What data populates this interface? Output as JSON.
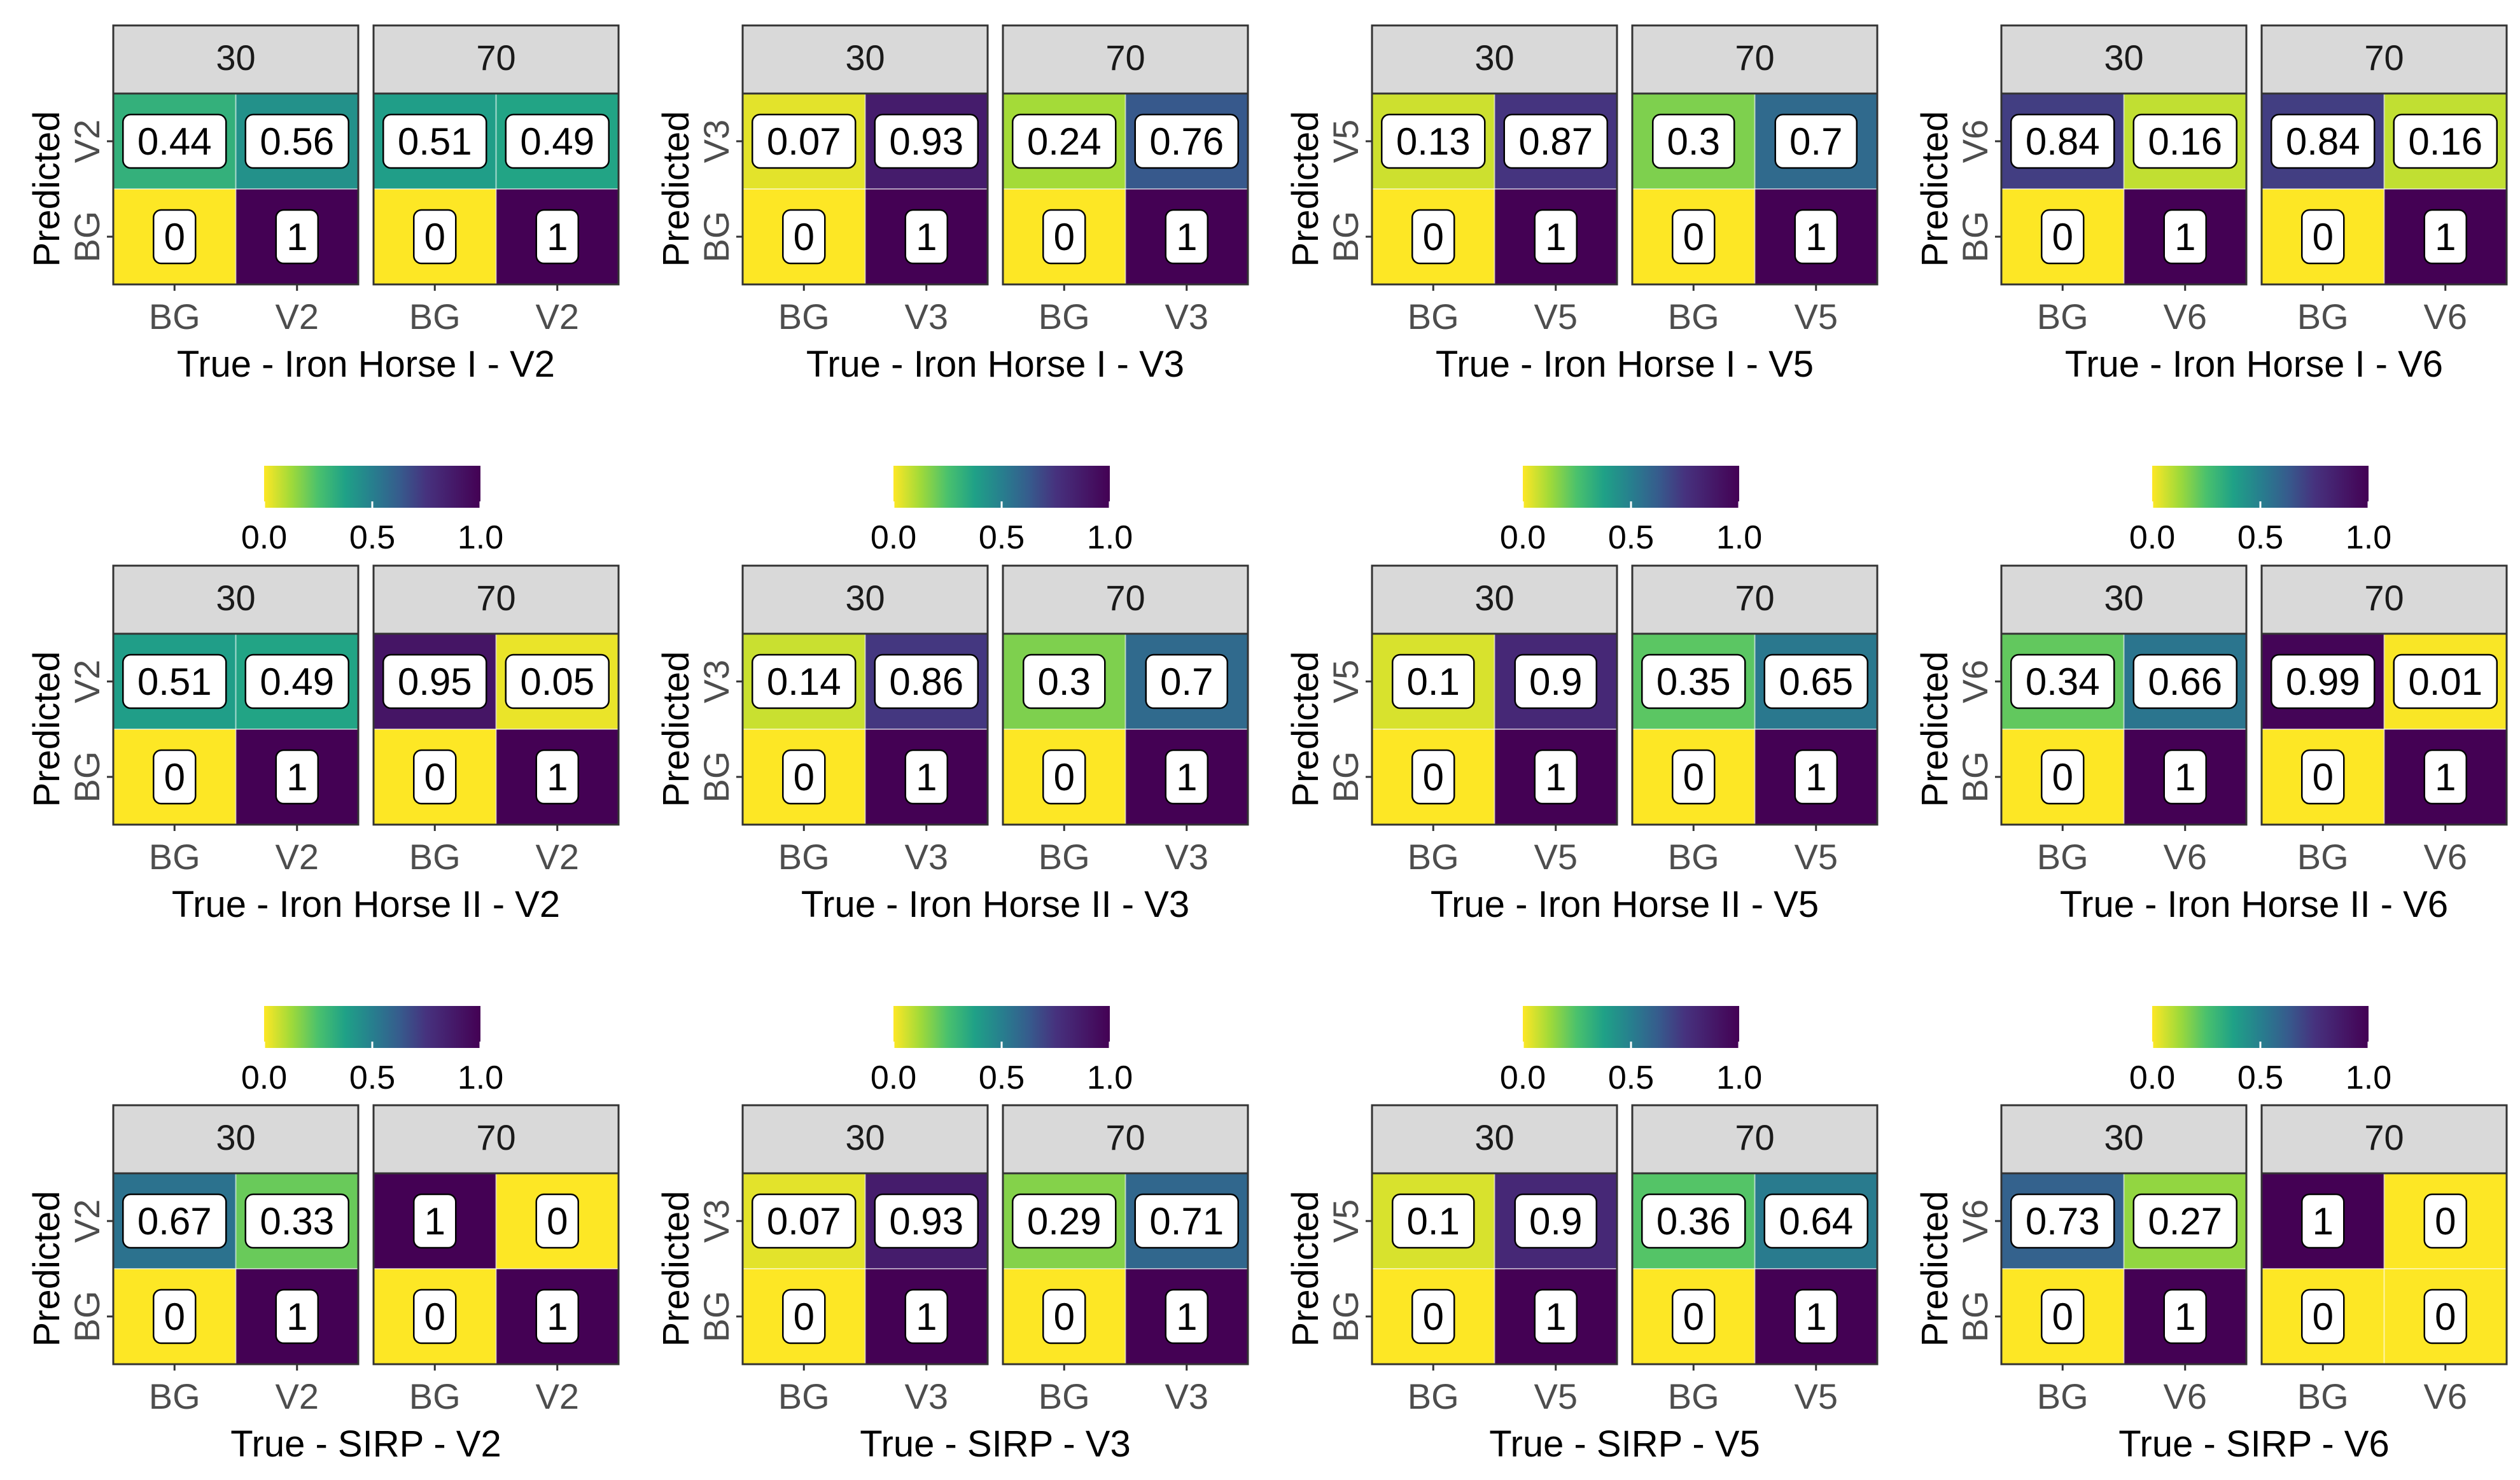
{
  "figure": {
    "colorbar_ticks": [
      "0.0",
      "0.5",
      "1.0"
    ],
    "colormap": "viridis (reversed: 0 = yellow, 1 = dark purple)",
    "colors": {
      "strip_fill": "#d9d9d9",
      "panel_border": "#333333",
      "axis_text": "#4d4d4d",
      "label_text": "#000000"
    }
  },
  "chart_data": [
    {
      "type": "heatmap",
      "xlabel": "True - Iron Horse I - V2",
      "ylabel": "Predicted",
      "categories": [
        "BG",
        "V2"
      ],
      "panels": [
        {
          "strip": "30",
          "rows": [
            {
              "label": "V2",
              "values": [
                "0.44",
                "0.56"
              ]
            },
            {
              "label": "BG",
              "values": [
                "0",
                "1"
              ]
            }
          ]
        },
        {
          "strip": "70",
          "rows": [
            {
              "label": "V2",
              "values": [
                "0.51",
                "0.49"
              ]
            },
            {
              "label": "BG",
              "values": [
                "0",
                "1"
              ]
            }
          ]
        }
      ]
    },
    {
      "type": "heatmap",
      "xlabel": "True - Iron Horse I - V3",
      "ylabel": "Predicted",
      "categories": [
        "BG",
        "V3"
      ],
      "panels": [
        {
          "strip": "30",
          "rows": [
            {
              "label": "V3",
              "values": [
                "0.07",
                "0.93"
              ]
            },
            {
              "label": "BG",
              "values": [
                "0",
                "1"
              ]
            }
          ]
        },
        {
          "strip": "70",
          "rows": [
            {
              "label": "V3",
              "values": [
                "0.24",
                "0.76"
              ]
            },
            {
              "label": "BG",
              "values": [
                "0",
                "1"
              ]
            }
          ]
        }
      ]
    },
    {
      "type": "heatmap",
      "xlabel": "True - Iron Horse I - V5",
      "ylabel": "Predicted",
      "categories": [
        "BG",
        "V5"
      ],
      "panels": [
        {
          "strip": "30",
          "rows": [
            {
              "label": "V5",
              "values": [
                "0.13",
                "0.87"
              ]
            },
            {
              "label": "BG",
              "values": [
                "0",
                "1"
              ]
            }
          ]
        },
        {
          "strip": "70",
          "rows": [
            {
              "label": "V5",
              "values": [
                "0.3",
                "0.7"
              ]
            },
            {
              "label": "BG",
              "values": [
                "0",
                "1"
              ]
            }
          ]
        }
      ]
    },
    {
      "type": "heatmap",
      "xlabel": "True - Iron Horse I - V6",
      "ylabel": "Predicted",
      "categories": [
        "BG",
        "V6"
      ],
      "panels": [
        {
          "strip": "30",
          "rows": [
            {
              "label": "V6",
              "values": [
                "0.84",
                "0.16"
              ]
            },
            {
              "label": "BG",
              "values": [
                "0",
                "1"
              ]
            }
          ]
        },
        {
          "strip": "70",
          "rows": [
            {
              "label": "V6",
              "values": [
                "0.84",
                "0.16"
              ]
            },
            {
              "label": "BG",
              "values": [
                "0",
                "1"
              ]
            }
          ]
        }
      ]
    },
    {
      "type": "heatmap",
      "xlabel": "True - Iron Horse II - V2",
      "ylabel": "Predicted",
      "categories": [
        "BG",
        "V2"
      ],
      "panels": [
        {
          "strip": "30",
          "rows": [
            {
              "label": "V2",
              "values": [
                "0.51",
                "0.49"
              ]
            },
            {
              "label": "BG",
              "values": [
                "0",
                "1"
              ]
            }
          ]
        },
        {
          "strip": "70",
          "rows": [
            {
              "label": "V2",
              "values": [
                "0.95",
                "0.05"
              ]
            },
            {
              "label": "BG",
              "values": [
                "0",
                "1"
              ]
            }
          ]
        }
      ]
    },
    {
      "type": "heatmap",
      "xlabel": "True - Iron Horse II - V3",
      "ylabel": "Predicted",
      "categories": [
        "BG",
        "V3"
      ],
      "panels": [
        {
          "strip": "30",
          "rows": [
            {
              "label": "V3",
              "values": [
                "0.14",
                "0.86"
              ]
            },
            {
              "label": "BG",
              "values": [
                "0",
                "1"
              ]
            }
          ]
        },
        {
          "strip": "70",
          "rows": [
            {
              "label": "V3",
              "values": [
                "0.3",
                "0.7"
              ]
            },
            {
              "label": "BG",
              "values": [
                "0",
                "1"
              ]
            }
          ]
        }
      ]
    },
    {
      "type": "heatmap",
      "xlabel": "True - Iron Horse II - V5",
      "ylabel": "Predicted",
      "categories": [
        "BG",
        "V5"
      ],
      "panels": [
        {
          "strip": "30",
          "rows": [
            {
              "label": "V5",
              "values": [
                "0.1",
                "0.9"
              ]
            },
            {
              "label": "BG",
              "values": [
                "0",
                "1"
              ]
            }
          ]
        },
        {
          "strip": "70",
          "rows": [
            {
              "label": "V5",
              "values": [
                "0.35",
                "0.65"
              ]
            },
            {
              "label": "BG",
              "values": [
                "0",
                "1"
              ]
            }
          ]
        }
      ]
    },
    {
      "type": "heatmap",
      "xlabel": "True - Iron Horse II - V6",
      "ylabel": "Predicted",
      "categories": [
        "BG",
        "V6"
      ],
      "panels": [
        {
          "strip": "30",
          "rows": [
            {
              "label": "V6",
              "values": [
                "0.34",
                "0.66"
              ]
            },
            {
              "label": "BG",
              "values": [
                "0",
                "1"
              ]
            }
          ]
        },
        {
          "strip": "70",
          "rows": [
            {
              "label": "V6",
              "values": [
                "0.99",
                "0.01"
              ]
            },
            {
              "label": "BG",
              "values": [
                "0",
                "1"
              ]
            }
          ]
        }
      ]
    },
    {
      "type": "heatmap",
      "xlabel": "True - SIRP - V2",
      "ylabel": "Predicted",
      "categories": [
        "BG",
        "V2"
      ],
      "panels": [
        {
          "strip": "30",
          "rows": [
            {
              "label": "V2",
              "values": [
                "0.67",
                "0.33"
              ]
            },
            {
              "label": "BG",
              "values": [
                "0",
                "1"
              ]
            }
          ]
        },
        {
          "strip": "70",
          "rows": [
            {
              "label": "V2",
              "values": [
                "1",
                "0"
              ]
            },
            {
              "label": "BG",
              "values": [
                "0",
                "1"
              ]
            }
          ]
        }
      ]
    },
    {
      "type": "heatmap",
      "xlabel": "True - SIRP - V3",
      "ylabel": "Predicted",
      "categories": [
        "BG",
        "V3"
      ],
      "panels": [
        {
          "strip": "30",
          "rows": [
            {
              "label": "V3",
              "values": [
                "0.07",
                "0.93"
              ]
            },
            {
              "label": "BG",
              "values": [
                "0",
                "1"
              ]
            }
          ]
        },
        {
          "strip": "70",
          "rows": [
            {
              "label": "V3",
              "values": [
                "0.29",
                "0.71"
              ]
            },
            {
              "label": "BG",
              "values": [
                "0",
                "1"
              ]
            }
          ]
        }
      ]
    },
    {
      "type": "heatmap",
      "xlabel": "True - SIRP - V5",
      "ylabel": "Predicted",
      "categories": [
        "BG",
        "V5"
      ],
      "panels": [
        {
          "strip": "30",
          "rows": [
            {
              "label": "V5",
              "values": [
                "0.1",
                "0.9"
              ]
            },
            {
              "label": "BG",
              "values": [
                "0",
                "1"
              ]
            }
          ]
        },
        {
          "strip": "70",
          "rows": [
            {
              "label": "V5",
              "values": [
                "0.36",
                "0.64"
              ]
            },
            {
              "label": "BG",
              "values": [
                "0",
                "1"
              ]
            }
          ]
        }
      ]
    },
    {
      "type": "heatmap",
      "xlabel": "True - SIRP - V6",
      "ylabel": "Predicted",
      "categories": [
        "BG",
        "V6"
      ],
      "panels": [
        {
          "strip": "30",
          "rows": [
            {
              "label": "V6",
              "values": [
                "0.73",
                "0.27"
              ]
            },
            {
              "label": "BG",
              "values": [
                "0",
                "1"
              ]
            }
          ]
        },
        {
          "strip": "70",
          "rows": [
            {
              "label": "V6",
              "values": [
                "1",
                "0"
              ]
            },
            {
              "label": "BG",
              "values": [
                "0",
                "0"
              ]
            }
          ]
        }
      ]
    }
  ]
}
